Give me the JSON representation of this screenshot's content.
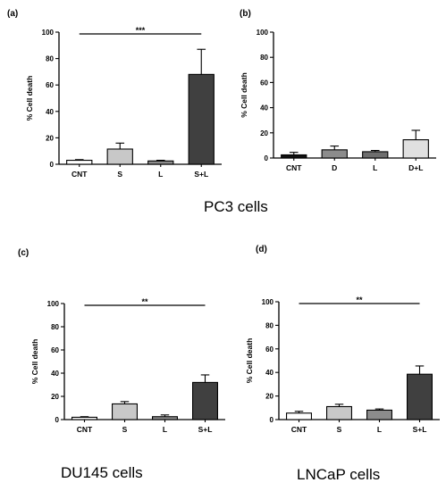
{
  "figure": {
    "captions": {
      "pc3": "PC3 cells",
      "du145": "DU145 cells",
      "lncap": "LNCaP cells"
    }
  },
  "chart_data": [
    {
      "panel": "(a)",
      "type": "bar",
      "categories": [
        "CNT",
        "S",
        "L",
        "S+L"
      ],
      "values": [
        3,
        11.5,
        2.5,
        68
      ],
      "errors": [
        0.5,
        4.5,
        0.5,
        19
      ],
      "colors": [
        "#ffffff",
        "#c8c8c8",
        "#8c8c8c",
        "#404040"
      ],
      "ylabel": "% Cell death",
      "ylim": [
        0,
        100
      ],
      "yticks": [
        0,
        20,
        40,
        60,
        80,
        100
      ],
      "significance": "***"
    },
    {
      "panel": "(b)",
      "type": "bar",
      "categories": [
        "CNT",
        "D",
        "L",
        "D+L"
      ],
      "values": [
        2.5,
        6.5,
        5,
        14.5
      ],
      "errors": [
        2,
        3,
        1,
        7.5
      ],
      "colors": [
        "#111111",
        "#8c8c8c",
        "#6e6e6e",
        "#e0e0e0"
      ],
      "ylabel": "% Cell death",
      "ylim": [
        0,
        100
      ],
      "yticks": [
        0,
        20,
        40,
        60,
        80,
        100
      ],
      "significance": ""
    },
    {
      "panel": "(c)",
      "type": "bar",
      "categories": [
        "CNT",
        "S",
        "L",
        "S+L"
      ],
      "values": [
        2,
        13.5,
        2.5,
        32
      ],
      "errors": [
        0.5,
        2,
        1.5,
        6.5
      ],
      "colors": [
        "#ffffff",
        "#c8c8c8",
        "#8c8c8c",
        "#404040"
      ],
      "ylabel": "% Cell death",
      "ylim": [
        0,
        100
      ],
      "yticks": [
        0,
        20,
        40,
        60,
        80,
        100
      ],
      "significance": "**"
    },
    {
      "panel": "(d)",
      "type": "bar",
      "categories": [
        "CNT",
        "S",
        "L",
        "S+L"
      ],
      "values": [
        5.5,
        11,
        8,
        38.5
      ],
      "errors": [
        1.5,
        2,
        1,
        7
      ],
      "colors": [
        "#ffffff",
        "#c8c8c8",
        "#8c8c8c",
        "#404040"
      ],
      "ylabel": "% Cell death",
      "ylim": [
        0,
        100
      ],
      "yticks": [
        0,
        20,
        40,
        60,
        80,
        100
      ],
      "significance": "**"
    }
  ]
}
